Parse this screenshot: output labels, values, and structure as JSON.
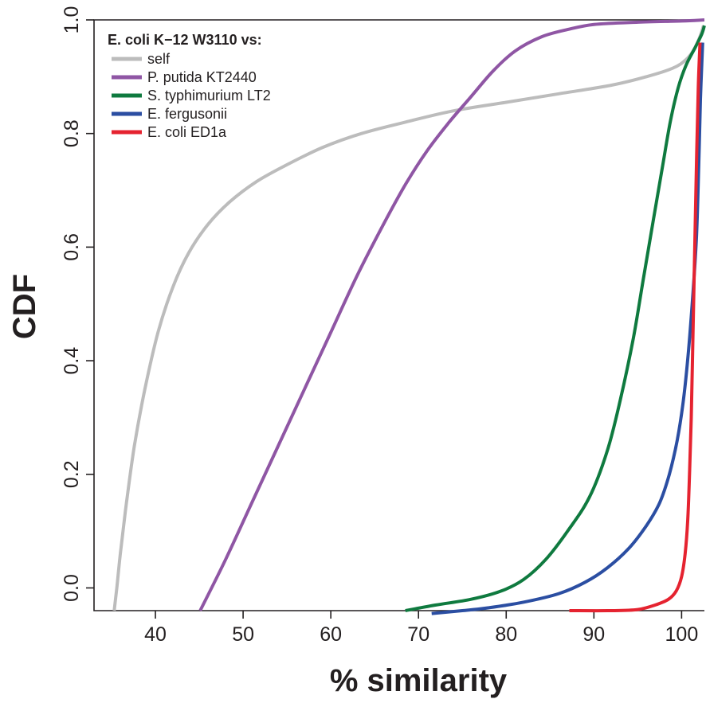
{
  "chart_data": {
    "type": "line",
    "title": "",
    "xlabel": "% similarity",
    "ylabel": "CDF",
    "xlim": [
      33,
      102.6
    ],
    "ylim": [
      -0.04,
      1.0
    ],
    "xticks": [
      40,
      50,
      60,
      70,
      80,
      90,
      100
    ],
    "yticks": [
      0.0,
      0.2,
      0.4,
      0.6,
      0.8,
      1.0
    ],
    "xtick_labels": [
      "40",
      "50",
      "60",
      "70",
      "80",
      "90",
      "100"
    ],
    "ytick_labels": [
      "0.0",
      "0.2",
      "0.4",
      "0.6",
      "0.8",
      "1.0"
    ],
    "grid": false,
    "legend": {
      "title": "E. coli K−12 W3110 vs:",
      "placement": "top-left"
    },
    "series": [
      {
        "name": "self",
        "color": "#bcbcbc",
        "points": [
          [
            35.3,
            -0.04
          ],
          [
            35.6,
            0.0
          ],
          [
            36.0,
            0.06
          ],
          [
            36.7,
            0.15
          ],
          [
            37.6,
            0.25
          ],
          [
            38.8,
            0.35
          ],
          [
            40.3,
            0.45
          ],
          [
            42.0,
            0.53
          ],
          [
            43.8,
            0.59
          ],
          [
            46.0,
            0.64
          ],
          [
            48.5,
            0.68
          ],
          [
            51.5,
            0.715
          ],
          [
            55.0,
            0.745
          ],
          [
            59.0,
            0.775
          ],
          [
            63.5,
            0.8
          ],
          [
            68.5,
            0.82
          ],
          [
            74.0,
            0.84
          ],
          [
            80.0,
            0.855
          ],
          [
            86.0,
            0.87
          ],
          [
            92.0,
            0.885
          ],
          [
            96.0,
            0.9
          ],
          [
            99.0,
            0.915
          ],
          [
            100.5,
            0.93
          ],
          [
            101.5,
            0.95
          ],
          [
            102.2,
            0.975
          ],
          [
            102.5,
            0.99
          ]
        ]
      },
      {
        "name": "P. putida KT2440",
        "color": "#8f56a4",
        "points": [
          [
            45.1,
            -0.04
          ],
          [
            48.0,
            0.05
          ],
          [
            51.0,
            0.15
          ],
          [
            54.0,
            0.25
          ],
          [
            57.0,
            0.35
          ],
          [
            60.0,
            0.45
          ],
          [
            63.0,
            0.55
          ],
          [
            66.0,
            0.64
          ],
          [
            68.5,
            0.71
          ],
          [
            71.0,
            0.77
          ],
          [
            73.5,
            0.82
          ],
          [
            76.0,
            0.865
          ],
          [
            78.5,
            0.91
          ],
          [
            81.0,
            0.945
          ],
          [
            84.0,
            0.97
          ],
          [
            87.0,
            0.983
          ],
          [
            90.0,
            0.992
          ],
          [
            95.0,
            0.996
          ],
          [
            100.0,
            0.998
          ],
          [
            102.6,
            1.0
          ]
        ]
      },
      {
        "name": "S. typhimurium LT2",
        "color": "#0f7a3f",
        "points": [
          [
            68.5,
            -0.04
          ],
          [
            72.0,
            -0.03
          ],
          [
            76.0,
            -0.02
          ],
          [
            79.5,
            -0.005
          ],
          [
            82.0,
            0.015
          ],
          [
            84.5,
            0.05
          ],
          [
            87.0,
            0.1
          ],
          [
            89.5,
            0.16
          ],
          [
            91.5,
            0.24
          ],
          [
            93.0,
            0.33
          ],
          [
            94.5,
            0.44
          ],
          [
            95.7,
            0.55
          ],
          [
            96.8,
            0.65
          ],
          [
            97.8,
            0.74
          ],
          [
            98.7,
            0.82
          ],
          [
            99.6,
            0.88
          ],
          [
            100.5,
            0.92
          ],
          [
            101.5,
            0.95
          ],
          [
            102.3,
            0.975
          ],
          [
            102.6,
            0.99
          ]
        ]
      },
      {
        "name": "E. fergusonii",
        "color": "#2b4ea2",
        "points": [
          [
            71.5,
            -0.045
          ],
          [
            75.0,
            -0.04
          ],
          [
            78.0,
            -0.035
          ],
          [
            82.0,
            -0.025
          ],
          [
            86.0,
            -0.01
          ],
          [
            89.0,
            0.01
          ],
          [
            91.5,
            0.035
          ],
          [
            94.0,
            0.07
          ],
          [
            96.0,
            0.11
          ],
          [
            97.5,
            0.15
          ],
          [
            98.6,
            0.2
          ],
          [
            99.5,
            0.26
          ],
          [
            100.2,
            0.33
          ],
          [
            100.8,
            0.42
          ],
          [
            101.3,
            0.52
          ],
          [
            101.7,
            0.62
          ],
          [
            101.95,
            0.74
          ],
          [
            102.15,
            0.86
          ],
          [
            102.4,
            0.96
          ]
        ]
      },
      {
        "name": "E. coli ED1a",
        "color": "#e52330",
        "points": [
          [
            87.2,
            -0.04
          ],
          [
            92.0,
            -0.04
          ],
          [
            95.0,
            -0.038
          ],
          [
            97.0,
            -0.03
          ],
          [
            98.5,
            -0.02
          ],
          [
            99.4,
            -0.005
          ],
          [
            100.0,
            0.02
          ],
          [
            100.4,
            0.06
          ],
          [
            100.7,
            0.12
          ],
          [
            100.9,
            0.2
          ],
          [
            101.1,
            0.3
          ],
          [
            101.3,
            0.45
          ],
          [
            101.5,
            0.6
          ],
          [
            101.7,
            0.75
          ],
          [
            101.9,
            0.88
          ],
          [
            102.1,
            0.96
          ]
        ]
      }
    ]
  }
}
